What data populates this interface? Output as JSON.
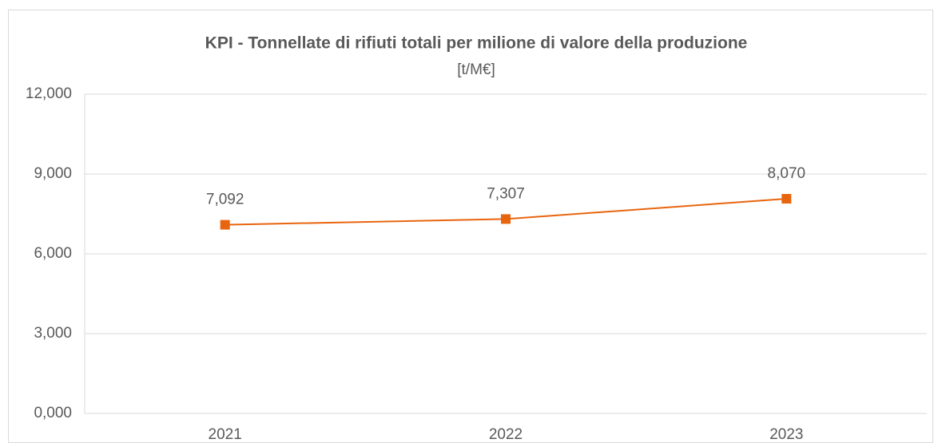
{
  "chart_data": {
    "type": "line",
    "title": "KPI - Tonnellate di rifiuti totali per milione di valore della produzione",
    "subtitle": "[t/M€]",
    "categories": [
      "2021",
      "2022",
      "2023"
    ],
    "series": [
      {
        "name": "KPI",
        "color": "#e8650f",
        "values": [
          7.092,
          7.307,
          8.07
        ],
        "value_labels": [
          "7,092",
          "7,307",
          "8,070"
        ]
      }
    ],
    "ylim": [
      0,
      12
    ],
    "yticks": [
      {
        "value": 0,
        "label": "0,000"
      },
      {
        "value": 3,
        "label": "3,000"
      },
      {
        "value": 6,
        "label": "6,000"
      },
      {
        "value": 9,
        "label": "9,000"
      },
      {
        "value": 12,
        "label": "12,000"
      }
    ],
    "grid": true
  }
}
